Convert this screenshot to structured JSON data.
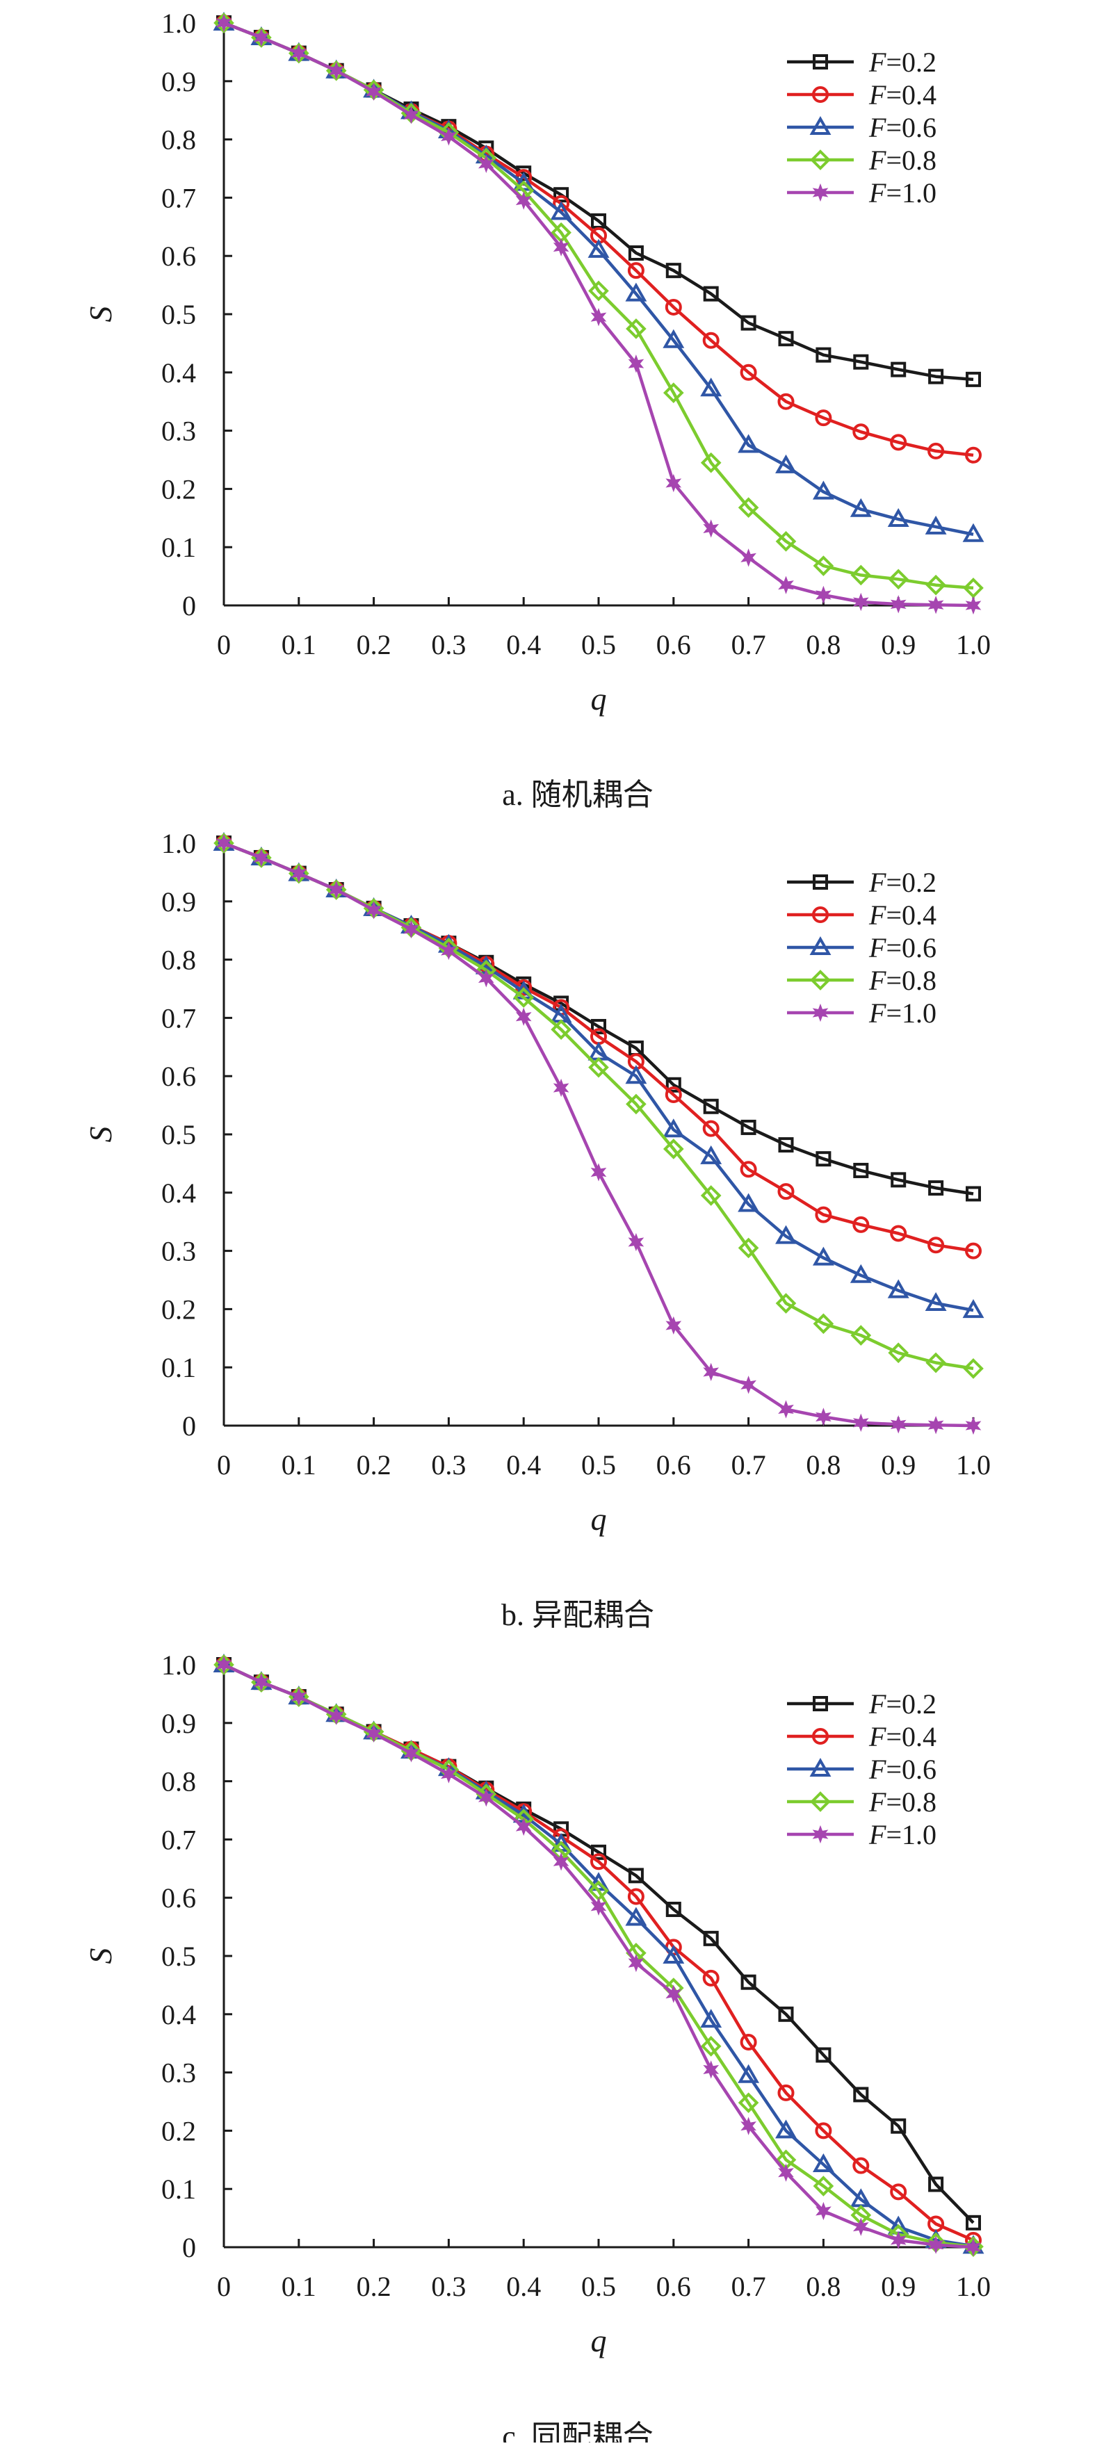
{
  "chart_data": [
    {
      "type": "line",
      "caption": "a. 随机耦合",
      "xlabel": "q",
      "ylabel": "S",
      "xlim": [
        0,
        1.0
      ],
      "ylim": [
        0,
        1.0
      ],
      "x_ticks": [
        "0",
        "0.1",
        "0.2",
        "0.3",
        "0.4",
        "0.5",
        "0.6",
        "0.7",
        "0.8",
        "0.9",
        "1.0"
      ],
      "y_ticks": [
        "0",
        "0.1",
        "0.2",
        "0.3",
        "0.4",
        "0.5",
        "0.6",
        "0.7",
        "0.8",
        "0.9",
        "1.0"
      ],
      "legend_position": "top-right",
      "grid": false,
      "x": [
        0,
        0.05,
        0.1,
        0.15,
        0.2,
        0.25,
        0.3,
        0.35,
        0.4,
        0.45,
        0.5,
        0.55,
        0.6,
        0.65,
        0.7,
        0.75,
        0.8,
        0.85,
        0.9,
        0.95,
        1.0
      ],
      "series": [
        {
          "name": "F=0.2",
          "name_var": "F",
          "name_val": "=0.2",
          "color": "#1a1a1a",
          "marker": "square",
          "values": [
            1.0,
            0.975,
            0.948,
            0.918,
            0.885,
            0.852,
            0.822,
            0.785,
            0.742,
            0.705,
            0.66,
            0.605,
            0.575,
            0.535,
            0.485,
            0.458,
            0.43,
            0.418,
            0.405,
            0.393,
            0.388
          ]
        },
        {
          "name": "F=0.4",
          "name_var": "F",
          "name_val": "=0.4",
          "color": "#e02020",
          "marker": "circle",
          "values": [
            1.0,
            0.975,
            0.948,
            0.918,
            0.885,
            0.848,
            0.818,
            0.775,
            0.735,
            0.69,
            0.635,
            0.575,
            0.512,
            0.455,
            0.4,
            0.35,
            0.322,
            0.298,
            0.28,
            0.265,
            0.258
          ]
        },
        {
          "name": "F=0.6",
          "name_var": "F",
          "name_val": "=0.6",
          "color": "#2f56a6",
          "marker": "triangle",
          "values": [
            1.0,
            0.975,
            0.948,
            0.918,
            0.885,
            0.848,
            0.815,
            0.772,
            0.725,
            0.675,
            0.61,
            0.535,
            0.455,
            0.372,
            0.275,
            0.24,
            0.195,
            0.165,
            0.148,
            0.135,
            0.122
          ]
        },
        {
          "name": "F=0.8",
          "name_var": "F",
          "name_val": "=0.8",
          "color": "#7ccc2e",
          "marker": "diamond",
          "values": [
            1.0,
            0.975,
            0.948,
            0.918,
            0.885,
            0.845,
            0.812,
            0.768,
            0.712,
            0.64,
            0.54,
            0.475,
            0.365,
            0.245,
            0.168,
            0.11,
            0.068,
            0.052,
            0.045,
            0.035,
            0.03
          ]
        },
        {
          "name": "F=1.0",
          "name_var": "F",
          "name_val": "=1.0",
          "color": "#a645b0",
          "marker": "star",
          "values": [
            1.0,
            0.975,
            0.948,
            0.918,
            0.882,
            0.842,
            0.805,
            0.758,
            0.695,
            0.615,
            0.495,
            0.415,
            0.21,
            0.132,
            0.082,
            0.035,
            0.018,
            0.006,
            0.002,
            0.001,
            0.0
          ]
        }
      ]
    },
    {
      "type": "line",
      "caption": "b. 异配耦合",
      "xlabel": "q",
      "ylabel": "S",
      "xlim": [
        0,
        1.0
      ],
      "ylim": [
        0,
        1.0
      ],
      "x_ticks": [
        "0",
        "0.1",
        "0.2",
        "0.3",
        "0.4",
        "0.5",
        "0.6",
        "0.7",
        "0.8",
        "0.9",
        "1.0"
      ],
      "y_ticks": [
        "0",
        "0.1",
        "0.2",
        "0.3",
        "0.4",
        "0.5",
        "0.6",
        "0.7",
        "0.8",
        "0.9",
        "1.0"
      ],
      "legend_position": "top-right",
      "grid": false,
      "x": [
        0,
        0.05,
        0.1,
        0.15,
        0.2,
        0.25,
        0.3,
        0.35,
        0.4,
        0.45,
        0.5,
        0.55,
        0.6,
        0.65,
        0.7,
        0.75,
        0.8,
        0.85,
        0.9,
        0.95,
        1.0
      ],
      "series": [
        {
          "name": "F=0.2",
          "name_var": "F",
          "name_val": "=0.2",
          "color": "#1a1a1a",
          "marker": "square",
          "values": [
            1.0,
            0.975,
            0.948,
            0.92,
            0.888,
            0.858,
            0.828,
            0.795,
            0.758,
            0.725,
            0.685,
            0.648,
            0.585,
            0.548,
            0.512,
            0.482,
            0.458,
            0.438,
            0.422,
            0.408,
            0.398
          ]
        },
        {
          "name": "F=0.4",
          "name_var": "F",
          "name_val": "=0.4",
          "color": "#e02020",
          "marker": "circle",
          "values": [
            1.0,
            0.975,
            0.948,
            0.92,
            0.888,
            0.858,
            0.828,
            0.792,
            0.752,
            0.718,
            0.668,
            0.625,
            0.568,
            0.51,
            0.44,
            0.402,
            0.362,
            0.345,
            0.33,
            0.31,
            0.3
          ]
        },
        {
          "name": "F=0.6",
          "name_var": "F",
          "name_val": "=0.6",
          "color": "#2f56a6",
          "marker": "triangle",
          "values": [
            1.0,
            0.975,
            0.948,
            0.92,
            0.888,
            0.858,
            0.825,
            0.788,
            0.745,
            0.705,
            0.64,
            0.6,
            0.508,
            0.462,
            0.38,
            0.325,
            0.288,
            0.258,
            0.232,
            0.21,
            0.198
          ]
        },
        {
          "name": "F=0.8",
          "name_var": "F",
          "name_val": "=0.8",
          "color": "#7ccc2e",
          "marker": "diamond",
          "values": [
            1.0,
            0.975,
            0.948,
            0.92,
            0.888,
            0.855,
            0.82,
            0.782,
            0.735,
            0.68,
            0.615,
            0.552,
            0.475,
            0.395,
            0.305,
            0.21,
            0.175,
            0.155,
            0.125,
            0.108,
            0.098
          ]
        },
        {
          "name": "F=1.0",
          "name_var": "F",
          "name_val": "=1.0",
          "color": "#a645b0",
          "marker": "star",
          "values": [
            1.0,
            0.975,
            0.948,
            0.92,
            0.885,
            0.852,
            0.815,
            0.768,
            0.702,
            0.58,
            0.435,
            0.315,
            0.172,
            0.092,
            0.07,
            0.028,
            0.015,
            0.005,
            0.002,
            0.001,
            0.0
          ]
        }
      ]
    },
    {
      "type": "line",
      "caption": "c. 同配耦合",
      "xlabel": "q",
      "ylabel": "S",
      "xlim": [
        0,
        1.0
      ],
      "ylim": [
        0,
        1.0
      ],
      "x_ticks": [
        "0",
        "0.1",
        "0.2",
        "0.3",
        "0.4",
        "0.5",
        "0.6",
        "0.7",
        "0.8",
        "0.9",
        "1.0"
      ],
      "y_ticks": [
        "0",
        "0.1",
        "0.2",
        "0.3",
        "0.4",
        "0.5",
        "0.6",
        "0.7",
        "0.8",
        "0.9",
        "1.0"
      ],
      "legend_position": "top-right",
      "grid": false,
      "x": [
        0,
        0.05,
        0.1,
        0.15,
        0.2,
        0.25,
        0.3,
        0.35,
        0.4,
        0.45,
        0.5,
        0.55,
        0.6,
        0.65,
        0.7,
        0.75,
        0.8,
        0.85,
        0.9,
        0.95,
        1.0
      ],
      "series": [
        {
          "name": "F=0.2",
          "name_var": "F",
          "name_val": "=0.2",
          "color": "#1a1a1a",
          "marker": "square",
          "values": [
            1.0,
            0.97,
            0.945,
            0.915,
            0.885,
            0.855,
            0.825,
            0.788,
            0.752,
            0.718,
            0.678,
            0.638,
            0.58,
            0.53,
            0.455,
            0.4,
            0.33,
            0.262,
            0.208,
            0.108,
            0.042
          ]
        },
        {
          "name": "F=0.4",
          "name_var": "F",
          "name_val": "=0.4",
          "color": "#e02020",
          "marker": "circle",
          "values": [
            1.0,
            0.97,
            0.945,
            0.915,
            0.885,
            0.855,
            0.825,
            0.785,
            0.748,
            0.705,
            0.662,
            0.602,
            0.515,
            0.462,
            0.352,
            0.265,
            0.2,
            0.14,
            0.095,
            0.04,
            0.012
          ]
        },
        {
          "name": "F=0.6",
          "name_var": "F",
          "name_val": "=0.6",
          "color": "#2f56a6",
          "marker": "triangle",
          "values": [
            1.0,
            0.97,
            0.945,
            0.915,
            0.885,
            0.852,
            0.822,
            0.782,
            0.742,
            0.692,
            0.625,
            0.565,
            0.5,
            0.39,
            0.295,
            0.2,
            0.142,
            0.082,
            0.035,
            0.012,
            0.002
          ]
        },
        {
          "name": "F=0.8",
          "name_var": "F",
          "name_val": "=0.8",
          "color": "#7ccc2e",
          "marker": "diamond",
          "values": [
            1.0,
            0.97,
            0.945,
            0.915,
            0.885,
            0.852,
            0.82,
            0.778,
            0.735,
            0.68,
            0.612,
            0.505,
            0.445,
            0.345,
            0.248,
            0.15,
            0.105,
            0.055,
            0.022,
            0.008,
            0.001
          ]
        },
        {
          "name": "F=1.0",
          "name_var": "F",
          "name_val": "=1.0",
          "color": "#a645b0",
          "marker": "star",
          "values": [
            1.0,
            0.97,
            0.945,
            0.912,
            0.882,
            0.848,
            0.812,
            0.772,
            0.722,
            0.662,
            0.585,
            0.488,
            0.435,
            0.305,
            0.208,
            0.128,
            0.062,
            0.035,
            0.012,
            0.004,
            0.0
          ]
        }
      ]
    }
  ]
}
